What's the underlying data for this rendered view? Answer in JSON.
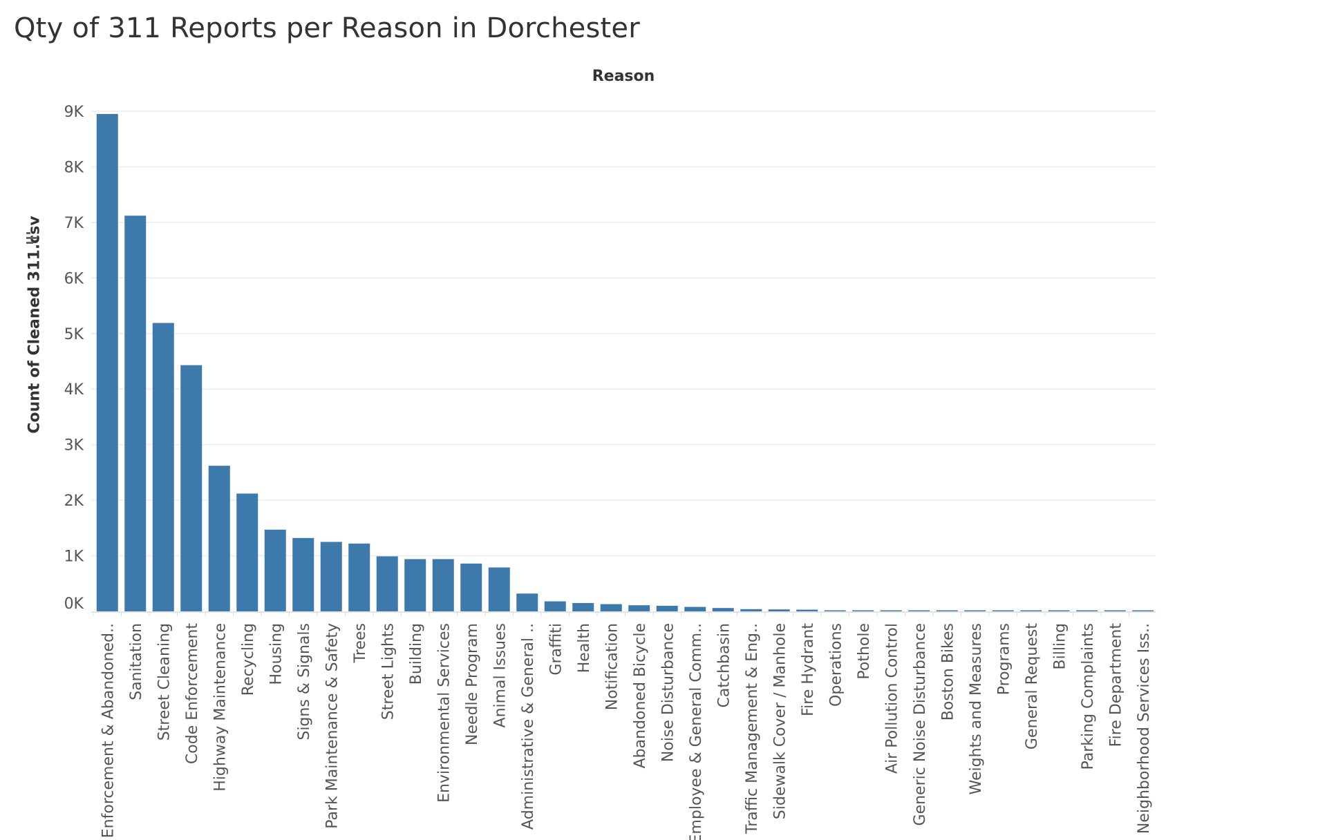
{
  "title": "Qty of 311 Reports per Reason in Dorchester",
  "column_header": "Reason",
  "y_axis_title": "Count of Cleaned 311.csv",
  "icons": {
    "sort": "sort-descending-icon"
  },
  "colors": {
    "bar": "#3e79ab",
    "grid": "#ececec",
    "axis": "#dcdcdc"
  },
  "chart_data": {
    "type": "bar",
    "title": "Qty of 311 Reports per Reason in Dorchester",
    "xlabel": "Reason",
    "ylabel": "Count of Cleaned 311.csv",
    "ylim": [
      0,
      9000
    ],
    "yticks": [
      {
        "value": 0,
        "label": "0K"
      },
      {
        "value": 1000,
        "label": "1K"
      },
      {
        "value": 2000,
        "label": "2K"
      },
      {
        "value": 3000,
        "label": "3K"
      },
      {
        "value": 4000,
        "label": "4K"
      },
      {
        "value": 5000,
        "label": "5K"
      },
      {
        "value": 6000,
        "label": "6K"
      },
      {
        "value": 7000,
        "label": "7K"
      },
      {
        "value": 8000,
        "label": "8K"
      },
      {
        "value": 9000,
        "label": "9K"
      }
    ],
    "grid": true,
    "legend": "none",
    "categories": [
      "Enforcement & Abandoned..",
      "Sanitation",
      "Street Cleaning",
      "Code Enforcement",
      "Highway Maintenance",
      "Recycling",
      "Housing",
      "Signs & Signals",
      "Park Maintenance & Safety",
      "Trees",
      "Street Lights",
      "Building",
      "Environmental Services",
      "Needle Program",
      "Animal Issues",
      "Administrative & General ..",
      "Graffiti",
      "Health",
      "Notification",
      "Abandoned Bicycle",
      "Noise Disturbance",
      "Employee & General Comm..",
      "Catchbasin",
      "Traffic Management & Eng..",
      "Sidewalk Cover / Manhole",
      "Fire Hydrant",
      "Operations",
      "Pothole",
      "Air Pollution Control",
      "Generic Noise Disturbance",
      "Boston Bikes",
      "Weights and Measures",
      "Programs",
      "General Request",
      "Billing",
      "Parking Complaints",
      "Fire Department",
      "Neighborhood Services Iss.."
    ],
    "values": [
      8950,
      7120,
      5190,
      4430,
      2620,
      2120,
      1470,
      1320,
      1250,
      1220,
      990,
      940,
      940,
      860,
      790,
      320,
      180,
      150,
      130,
      110,
      100,
      80,
      60,
      40,
      35,
      30,
      18,
      15,
      12,
      6,
      5,
      5,
      4,
      3,
      3,
      2,
      2,
      2
    ]
  }
}
